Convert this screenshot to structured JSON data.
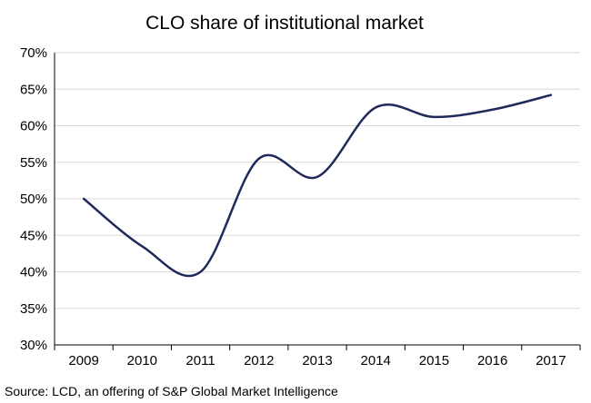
{
  "chart_data": {
    "type": "line",
    "title": "CLO share of institutional market",
    "xlabel": "",
    "ylabel": "",
    "categories": [
      "2009",
      "2010",
      "2011",
      "2012",
      "2013",
      "2014",
      "2015",
      "2016",
      "2017"
    ],
    "series": [
      {
        "values": [
          50,
          43.5,
          40,
          55.5,
          53,
          62.5,
          61.2,
          62.2,
          64.2
        ],
        "color": "#1f2a5a"
      }
    ],
    "ylim": [
      30,
      70
    ],
    "yticks": [
      30,
      35,
      40,
      45,
      50,
      55,
      60,
      65,
      70
    ],
    "ytick_labels": [
      "30%",
      "35%",
      "40%",
      "45%",
      "50%",
      "55%",
      "60%",
      "65%",
      "70%"
    ],
    "grid": true,
    "grid_axis": "y",
    "grid_color": "#d9d9d9",
    "legend": "none",
    "smooth": true
  },
  "source_note": "Source: LCD, an offering of S&P Global Market Intelligence"
}
